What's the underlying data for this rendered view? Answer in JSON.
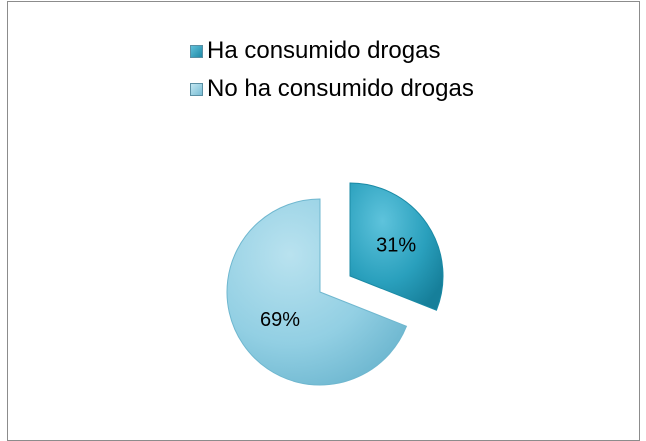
{
  "chart_data": {
    "type": "pie",
    "title": "",
    "categories": [
      "Ha consumido drogas",
      "No ha consumido drogas"
    ],
    "values": [
      31,
      69
    ],
    "labels": [
      "31%",
      "69%"
    ],
    "colors": [
      "#2aa0bd",
      "#8fcde2"
    ],
    "legend_position": "top"
  }
}
